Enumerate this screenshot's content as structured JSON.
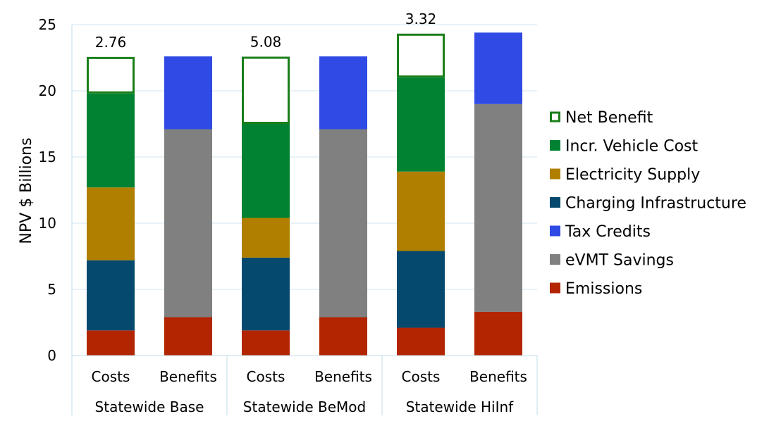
{
  "chart_data": {
    "type": "bar",
    "stacked": true,
    "ylabel": "NPV $ Billions",
    "ylim": [
      0,
      25
    ],
    "yticks": [
      0,
      5,
      10,
      15,
      20,
      25
    ],
    "grid": true,
    "legend_position": "right",
    "groups": [
      "Statewide Base",
      "Statewide BeMod",
      "Statewide HiInf"
    ],
    "categories": [
      "Costs",
      "Benefits",
      "Costs",
      "Benefits",
      "Costs",
      "Benefits"
    ],
    "series": [
      {
        "name": "Emissions",
        "color": "#b22500",
        "values": [
          1.9,
          2.9,
          1.9,
          2.9,
          2.1,
          3.3
        ]
      },
      {
        "name": "eVMT Savings",
        "color": "#808080",
        "values": [
          0,
          14.2,
          0,
          14.2,
          0,
          15.7
        ]
      },
      {
        "name": "Tax Credits",
        "color": "#2f4ae5",
        "values": [
          0,
          5.5,
          0,
          5.5,
          0,
          5.4
        ]
      },
      {
        "name": "Charging Infrastructure",
        "color": "#054a6e",
        "values": [
          5.3,
          0,
          5.5,
          0,
          5.8,
          0
        ]
      },
      {
        "name": "Electricity Supply",
        "color": "#b07f00",
        "values": [
          5.5,
          0,
          3.0,
          0,
          6.0,
          0
        ]
      },
      {
        "name": "Incr. Vehicle Cost",
        "color": "#018233",
        "values": [
          7.1,
          0,
          7.1,
          0,
          7.1,
          0
        ]
      },
      {
        "name": "Net Benefit",
        "color": "#ffffff",
        "border": "#1a7f1a",
        "values": [
          2.76,
          0,
          5.08,
          0,
          3.32,
          0
        ]
      }
    ],
    "data_labels": [
      "2.76",
      "",
      "5.08",
      "",
      "3.32",
      ""
    ],
    "legend_order": [
      "Net Benefit",
      "Incr. Vehicle Cost",
      "Electricity Supply",
      "Charging Infrastructure",
      "Tax Credits",
      "eVMT Savings",
      "Emissions"
    ]
  }
}
